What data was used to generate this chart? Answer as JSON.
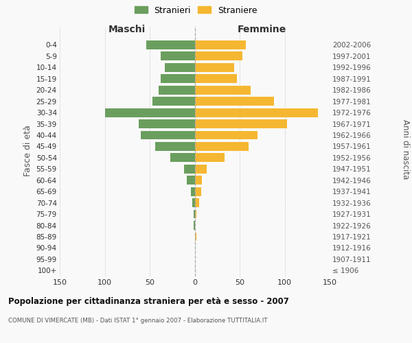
{
  "age_groups": [
    "100+",
    "95-99",
    "90-94",
    "85-89",
    "80-84",
    "75-79",
    "70-74",
    "65-69",
    "60-64",
    "55-59",
    "50-54",
    "45-49",
    "40-44",
    "35-39",
    "30-34",
    "25-29",
    "20-24",
    "15-19",
    "10-14",
    "5-9",
    "0-4"
  ],
  "birth_years": [
    "≤ 1906",
    "1907-1911",
    "1912-1916",
    "1917-1921",
    "1922-1926",
    "1927-1931",
    "1932-1936",
    "1937-1941",
    "1942-1946",
    "1947-1951",
    "1952-1956",
    "1957-1961",
    "1962-1966",
    "1967-1971",
    "1972-1976",
    "1977-1981",
    "1982-1986",
    "1987-1991",
    "1992-1996",
    "1997-2001",
    "2002-2006"
  ],
  "maschi": [
    0,
    0,
    0,
    0,
    1,
    1,
    3,
    4,
    9,
    12,
    27,
    44,
    60,
    62,
    100,
    47,
    40,
    38,
    33,
    38,
    54
  ],
  "femmine": [
    0,
    0,
    0,
    2,
    0,
    2,
    5,
    7,
    8,
    13,
    33,
    60,
    70,
    103,
    137,
    88,
    62,
    47,
    44,
    53,
    57
  ],
  "maschi_color": "#6a9e5e",
  "femmine_color": "#f5b731",
  "background_color": "#f9f9f9",
  "grid_color": "#cccccc",
  "title": "Popolazione per cittadinanza straniera per età e sesso - 2007",
  "subtitle": "COMUNE DI VIMERCATE (MB) - Dati ISTAT 1° gennaio 2007 - Elaborazione TUTTITALIA.IT",
  "ylabel_left": "Fasce di età",
  "ylabel_right": "Anni di nascita",
  "xlabel_left": "Maschi",
  "xlabel_right": "Femmine",
  "legend_maschi": "Stranieri",
  "legend_femmine": "Straniere",
  "xlim": 150
}
